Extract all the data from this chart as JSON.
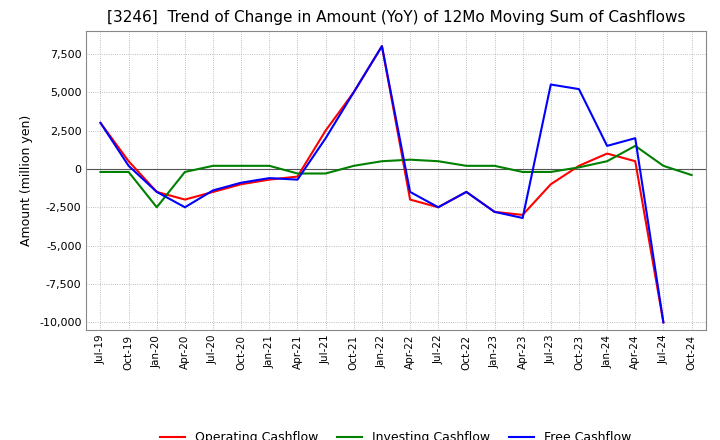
{
  "title": "[3246]  Trend of Change in Amount (YoY) of 12Mo Moving Sum of Cashflows",
  "ylabel": "Amount (million yen)",
  "ylim": [
    -10500,
    9000
  ],
  "yticks": [
    -10000,
    -7500,
    -5000,
    -2500,
    0,
    2500,
    5000,
    7500
  ],
  "x_labels": [
    "Jul-19",
    "Oct-19",
    "Jan-20",
    "Apr-20",
    "Jul-20",
    "Oct-20",
    "Jan-21",
    "Apr-21",
    "Jul-21",
    "Oct-21",
    "Jan-22",
    "Apr-22",
    "Jul-22",
    "Oct-22",
    "Jan-23",
    "Apr-23",
    "Jul-23",
    "Oct-23",
    "Jan-24",
    "Apr-24",
    "Jul-24",
    "Oct-24"
  ],
  "operating": [
    3000,
    500,
    -1500,
    -2000,
    -1500,
    -1000,
    -700,
    -500,
    2500,
    5000,
    8000,
    -2000,
    -2500,
    -1500,
    -2800,
    -3000,
    -1000,
    200,
    1000,
    500,
    -10000,
    null
  ],
  "investing": [
    -200,
    -200,
    -2500,
    -200,
    200,
    200,
    200,
    -300,
    -300,
    200,
    500,
    600,
    500,
    200,
    200,
    -200,
    -200,
    100,
    500,
    1500,
    200,
    -400
  ],
  "free": [
    3000,
    200,
    -1500,
    -2500,
    -1400,
    -900,
    -600,
    -700,
    2000,
    5000,
    8000,
    -1500,
    -2500,
    -1500,
    -2800,
    -3200,
    5500,
    5200,
    1500,
    2000,
    -10000,
    null
  ],
  "op_color": "#ff0000",
  "inv_color": "#008000",
  "free_color": "#0000ff",
  "bg_color": "#ffffff",
  "grid_color": "#aaaaaa",
  "title_fontsize": 11,
  "legend_labels": [
    "Operating Cashflow",
    "Investing Cashflow",
    "Free Cashflow"
  ]
}
